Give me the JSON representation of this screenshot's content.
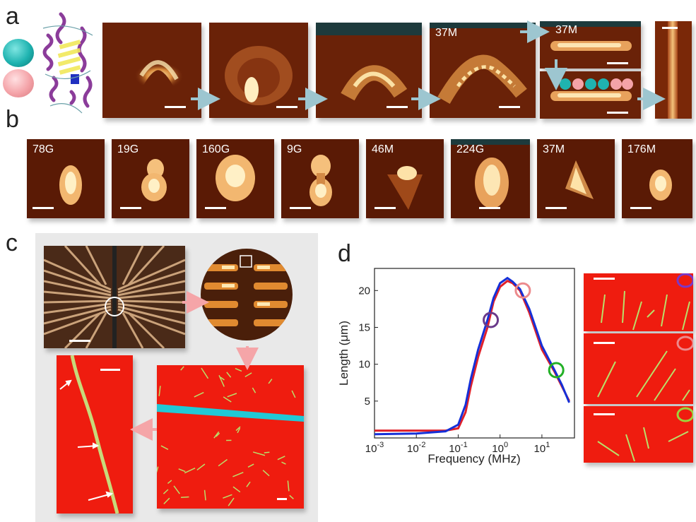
{
  "panels": {
    "a": "a",
    "b": "b",
    "c": "c",
    "d": "d"
  },
  "row_a_labels": [
    "37M",
    "37M"
  ],
  "row_b_labels": [
    "78G",
    "19G",
    "160G",
    "9G",
    "46M",
    "224G",
    "37M",
    "176M"
  ],
  "colors": {
    "teal_sphere": "#1fb3b0",
    "pink_sphere": "#f4a3a8",
    "afm_dark": "#5a1a05",
    "afm_bright": "#ffe7a8",
    "substrate_red": "#ef1c0f",
    "nanowire": "#b9e06a",
    "electrode_cyan": "#21c8d6",
    "arrow_pink": "#f5a5a8",
    "arrow_blue": "#9dc6d0",
    "curve_red": "#e0202a",
    "curve_blue": "#1530d8",
    "circle_purple": "#6a3a8a",
    "circle_pink": "#ec8a8c",
    "circle_green": "#22b026"
  },
  "chart_data": {
    "type": "line",
    "xlabel": "Frequency (MHz)",
    "ylabel": "Length (μm)",
    "x_scale": "log",
    "xlim": [
      0.001,
      60
    ],
    "ylim": [
      0,
      23
    ],
    "x_ticks": [
      "10-3",
      "10-2",
      "10-1",
      "100",
      "101"
    ],
    "y_ticks": [
      5,
      10,
      15,
      20
    ],
    "series": [
      {
        "color": "#e0202a",
        "points": [
          [
            0.001,
            1.0
          ],
          [
            0.01,
            1.0
          ],
          [
            0.05,
            1.0
          ],
          [
            0.1,
            1.3
          ],
          [
            0.15,
            3.5
          ],
          [
            0.2,
            7
          ],
          [
            0.3,
            11
          ],
          [
            0.5,
            15
          ],
          [
            0.7,
            18.5
          ],
          [
            1.0,
            20.5
          ],
          [
            1.5,
            21.3
          ],
          [
            2.0,
            21.0
          ],
          [
            3.0,
            20
          ],
          [
            5.0,
            17
          ],
          [
            10,
            12
          ],
          [
            20,
            9
          ],
          [
            30,
            7
          ],
          [
            45,
            5
          ]
        ]
      },
      {
        "color": "#1530d8",
        "points": [
          [
            0.001,
            0.5
          ],
          [
            0.01,
            0.6
          ],
          [
            0.05,
            0.9
          ],
          [
            0.1,
            1.8
          ],
          [
            0.15,
            4.5
          ],
          [
            0.2,
            8
          ],
          [
            0.3,
            12
          ],
          [
            0.5,
            16
          ],
          [
            0.7,
            19
          ],
          [
            1.0,
            21
          ],
          [
            1.5,
            21.7
          ],
          [
            2.0,
            21.2
          ],
          [
            3.0,
            20.2
          ],
          [
            5.0,
            17.5
          ],
          [
            10,
            12.5
          ],
          [
            20,
            9.2
          ],
          [
            30,
            7.2
          ],
          [
            45,
            4.8
          ]
        ]
      }
    ],
    "markers": [
      {
        "x": 0.6,
        "y": 16,
        "color": "#6a3a8a"
      },
      {
        "x": 3.5,
        "y": 20,
        "color": "#ec8a8c"
      },
      {
        "x": 22,
        "y": 9.2,
        "color": "#22b026"
      }
    ]
  }
}
